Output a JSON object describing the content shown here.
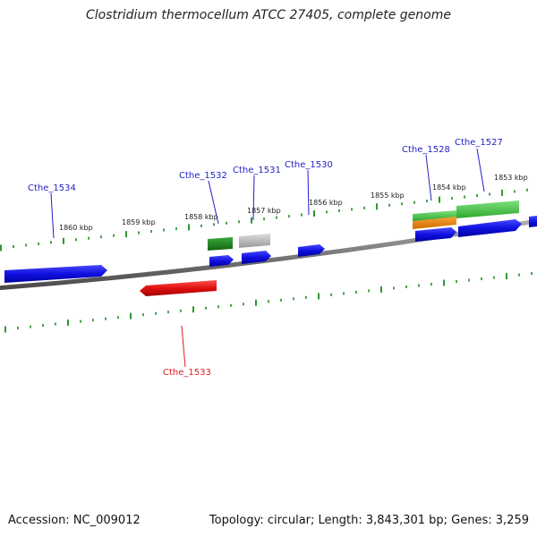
{
  "title": "Clostridium thermocellum ATCC 27405, complete genome",
  "footer": {
    "accession": "Accession: NC_009012",
    "stats": "Topology: circular; Length: 3,843,301 bp; Genes: 3,259"
  },
  "scale_labels": [
    "1860 kbp",
    "1859 kbp",
    "1858 kbp",
    "1857 kbp",
    "1856 kbp",
    "1855 kbp",
    "1854 kbp",
    "1853 kbp"
  ],
  "gene_labels": [
    "Cthe_1534",
    "Cthe_1532",
    "Cthe_1531",
    "Cthe_1530",
    "Cthe_1528",
    "Cthe_1527",
    "Cthe_1533"
  ],
  "colors": {
    "forward_cds": "#1010e0",
    "reverse_cds": "#e01010",
    "backbone": "#8a8a8a",
    "ticks": "#1a8a1a",
    "feature_dark_green": "#1f8a1f",
    "feature_light_green": "#50c050",
    "feature_grey": "#bdbdbd",
    "feature_orange": "#f08a10"
  }
}
